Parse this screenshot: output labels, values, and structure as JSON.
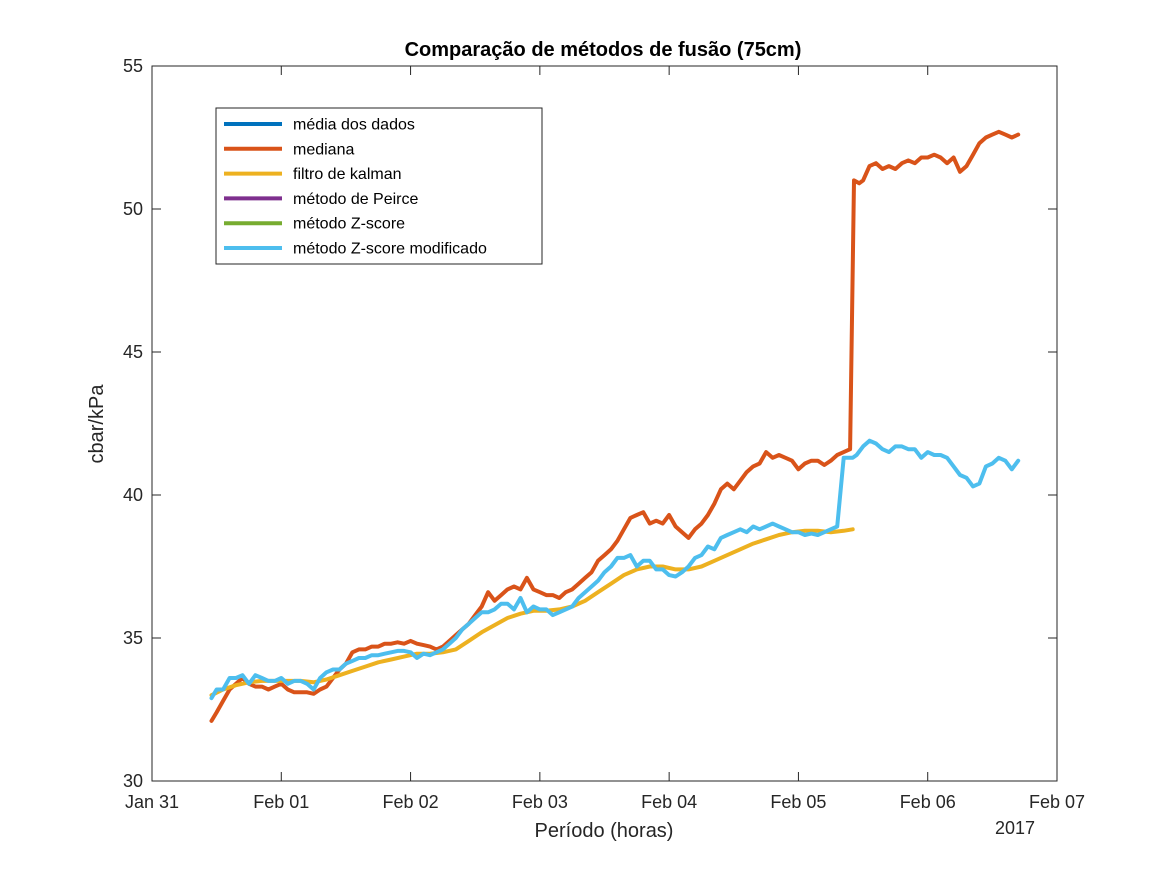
{
  "chart_data": {
    "type": "line",
    "title": "Comparação de métodos de fusão (75cm)",
    "xlabel": "Período (horas)",
    "ylabel": "cbar/kPa",
    "x_ticks": [
      "Jan 31",
      "Feb 01",
      "Feb 02",
      "Feb 03",
      "Feb 04",
      "Feb 05",
      "Feb 06",
      "Feb 07"
    ],
    "x_year_label": "2017",
    "xlim": [
      0,
      7
    ],
    "ylim": [
      30,
      55
    ],
    "y_ticks": [
      30,
      35,
      40,
      45,
      50,
      55
    ],
    "grid": false,
    "legend_position": "top-left",
    "series": [
      {
        "name": "média dos dados",
        "color": "#0072BD",
        "x": [],
        "y": []
      },
      {
        "name": "mediana",
        "color": "#D95319",
        "x": [
          0.46,
          0.5,
          0.55,
          0.6,
          0.65,
          0.7,
          0.75,
          0.8,
          0.85,
          0.9,
          0.95,
          1.0,
          1.05,
          1.1,
          1.15,
          1.2,
          1.25,
          1.3,
          1.35,
          1.4,
          1.45,
          1.5,
          1.55,
          1.6,
          1.65,
          1.7,
          1.75,
          1.8,
          1.85,
          1.9,
          1.95,
          2.0,
          2.05,
          2.1,
          2.15,
          2.2,
          2.25,
          2.3,
          2.35,
          2.4,
          2.45,
          2.5,
          2.55,
          2.6,
          2.65,
          2.7,
          2.75,
          2.8,
          2.85,
          2.9,
          2.95,
          3.0,
          3.05,
          3.1,
          3.15,
          3.2,
          3.25,
          3.3,
          3.35,
          3.4,
          3.45,
          3.5,
          3.55,
          3.6,
          3.65,
          3.7,
          3.75,
          3.8,
          3.85,
          3.9,
          3.95,
          4.0,
          4.05,
          4.1,
          4.15,
          4.2,
          4.25,
          4.3,
          4.35,
          4.4,
          4.45,
          4.5,
          4.55,
          4.6,
          4.65,
          4.7,
          4.75,
          4.8,
          4.85,
          4.9,
          4.95,
          5.0,
          5.05,
          5.1,
          5.15,
          5.2,
          5.25,
          5.3,
          5.35,
          5.4,
          5.43,
          5.47,
          5.5,
          5.55,
          5.6,
          5.65,
          5.7,
          5.75,
          5.8,
          5.85,
          5.9,
          5.95,
          6.0,
          6.05,
          6.1,
          6.15,
          6.2,
          6.25,
          6.3,
          6.35,
          6.4,
          6.45,
          6.5,
          6.55,
          6.6,
          6.65,
          6.7
        ],
        "y": [
          32.1,
          32.4,
          32.8,
          33.2,
          33.4,
          33.6,
          33.4,
          33.3,
          33.3,
          33.2,
          33.3,
          33.4,
          33.2,
          33.1,
          33.1,
          33.1,
          33.05,
          33.2,
          33.3,
          33.6,
          33.9,
          34.1,
          34.5,
          34.6,
          34.6,
          34.7,
          34.7,
          34.8,
          34.8,
          34.85,
          34.8,
          34.9,
          34.8,
          34.75,
          34.7,
          34.6,
          34.7,
          34.9,
          35.1,
          35.3,
          35.5,
          35.8,
          36.1,
          36.6,
          36.3,
          36.5,
          36.7,
          36.8,
          36.7,
          37.1,
          36.7,
          36.6,
          36.5,
          36.5,
          36.4,
          36.6,
          36.7,
          36.9,
          37.1,
          37.3,
          37.7,
          37.9,
          38.1,
          38.4,
          38.8,
          39.2,
          39.3,
          39.4,
          39.0,
          39.1,
          39.0,
          39.3,
          38.9,
          38.7,
          38.5,
          38.8,
          39.0,
          39.3,
          39.7,
          40.2,
          40.4,
          40.2,
          40.5,
          40.8,
          41.0,
          41.1,
          41.5,
          41.3,
          41.4,
          41.3,
          41.2,
          40.9,
          41.1,
          41.2,
          41.2,
          41.05,
          41.2,
          41.4,
          41.5,
          41.6,
          51.0,
          50.9,
          51.0,
          51.5,
          51.6,
          51.4,
          51.5,
          51.4,
          51.6,
          51.7,
          51.6,
          51.8,
          51.8,
          51.9,
          51.8,
          51.6,
          51.8,
          51.3,
          51.5,
          51.9,
          52.3,
          52.5,
          52.6,
          52.7,
          52.6,
          52.5,
          52.6
        ]
      },
      {
        "name": "filtro de kalman",
        "color": "#EDB120",
        "x": [
          0.46,
          0.55,
          0.65,
          0.75,
          0.85,
          0.95,
          1.05,
          1.15,
          1.25,
          1.35,
          1.45,
          1.55,
          1.65,
          1.75,
          1.85,
          1.95,
          2.05,
          2.15,
          2.25,
          2.35,
          2.45,
          2.55,
          2.65,
          2.75,
          2.85,
          2.95,
          3.05,
          3.15,
          3.25,
          3.35,
          3.45,
          3.55,
          3.65,
          3.75,
          3.85,
          3.95,
          4.05,
          4.15,
          4.25,
          4.35,
          4.45,
          4.55,
          4.65,
          4.75,
          4.85,
          4.95,
          5.05,
          5.15,
          5.25,
          5.35,
          5.42
        ],
        "y": [
          33.0,
          33.2,
          33.35,
          33.45,
          33.5,
          33.5,
          33.5,
          33.5,
          33.45,
          33.55,
          33.7,
          33.85,
          34.0,
          34.15,
          34.25,
          34.35,
          34.45,
          34.45,
          34.5,
          34.6,
          34.9,
          35.2,
          35.45,
          35.7,
          35.85,
          35.95,
          35.95,
          36.0,
          36.1,
          36.3,
          36.6,
          36.9,
          37.2,
          37.4,
          37.5,
          37.5,
          37.4,
          37.4,
          37.5,
          37.7,
          37.9,
          38.1,
          38.3,
          38.45,
          38.6,
          38.7,
          38.75,
          38.75,
          38.7,
          38.75,
          38.8
        ]
      },
      {
        "name": "método de Peirce",
        "color": "#7E2F8E",
        "x": [],
        "y": []
      },
      {
        "name": "método Z-score",
        "color": "#77AC30",
        "x": [],
        "y": []
      },
      {
        "name": "método Z-score modificado",
        "color": "#4DBEEE",
        "x": [
          0.46,
          0.5,
          0.55,
          0.6,
          0.65,
          0.7,
          0.75,
          0.8,
          0.85,
          0.9,
          0.95,
          1.0,
          1.05,
          1.1,
          1.15,
          1.2,
          1.25,
          1.3,
          1.35,
          1.4,
          1.45,
          1.5,
          1.55,
          1.6,
          1.65,
          1.7,
          1.75,
          1.8,
          1.85,
          1.9,
          1.95,
          2.0,
          2.05,
          2.1,
          2.15,
          2.2,
          2.25,
          2.3,
          2.35,
          2.4,
          2.45,
          2.5,
          2.55,
          2.6,
          2.65,
          2.7,
          2.75,
          2.8,
          2.85,
          2.9,
          2.95,
          3.0,
          3.05,
          3.1,
          3.15,
          3.2,
          3.25,
          3.3,
          3.35,
          3.4,
          3.45,
          3.5,
          3.55,
          3.6,
          3.65,
          3.7,
          3.75,
          3.8,
          3.85,
          3.9,
          3.95,
          4.0,
          4.05,
          4.1,
          4.15,
          4.2,
          4.25,
          4.3,
          4.35,
          4.4,
          4.45,
          4.5,
          4.55,
          4.6,
          4.65,
          4.7,
          4.75,
          4.8,
          4.85,
          4.9,
          4.95,
          5.0,
          5.05,
          5.1,
          5.15,
          5.2,
          5.25,
          5.3,
          5.35,
          5.42,
          5.45,
          5.5,
          5.55,
          5.6,
          5.65,
          5.7,
          5.75,
          5.8,
          5.85,
          5.9,
          5.95,
          6.0,
          6.05,
          6.1,
          6.15,
          6.2,
          6.25,
          6.3,
          6.35,
          6.4,
          6.45,
          6.5,
          6.55,
          6.6,
          6.65,
          6.7
        ],
        "y": [
          32.9,
          33.2,
          33.2,
          33.6,
          33.6,
          33.7,
          33.4,
          33.7,
          33.6,
          33.5,
          33.5,
          33.6,
          33.4,
          33.5,
          33.5,
          33.4,
          33.2,
          33.6,
          33.8,
          33.9,
          33.9,
          34.1,
          34.2,
          34.3,
          34.3,
          34.4,
          34.4,
          34.45,
          34.5,
          34.55,
          34.55,
          34.5,
          34.3,
          34.45,
          34.4,
          34.5,
          34.6,
          34.8,
          35.0,
          35.3,
          35.5,
          35.7,
          35.9,
          35.9,
          36.0,
          36.2,
          36.2,
          36.0,
          36.4,
          35.9,
          36.1,
          36.0,
          36.0,
          35.8,
          35.9,
          36.0,
          36.1,
          36.4,
          36.6,
          36.8,
          37.0,
          37.3,
          37.5,
          37.8,
          37.8,
          37.9,
          37.5,
          37.7,
          37.7,
          37.4,
          37.4,
          37.2,
          37.15,
          37.3,
          37.5,
          37.8,
          37.9,
          38.2,
          38.1,
          38.5,
          38.6,
          38.7,
          38.8,
          38.7,
          38.9,
          38.8,
          38.9,
          39.0,
          38.9,
          38.8,
          38.7,
          38.7,
          38.6,
          38.65,
          38.6,
          38.7,
          38.8,
          38.9,
          41.3,
          41.3,
          41.4,
          41.7,
          41.9,
          41.8,
          41.6,
          41.5,
          41.7,
          41.7,
          41.6,
          41.6,
          41.3,
          41.5,
          41.4,
          41.4,
          41.3,
          41.0,
          40.7,
          40.6,
          40.3,
          40.4,
          41.0,
          41.1,
          41.3,
          41.2,
          40.9,
          41.2
        ]
      }
    ]
  }
}
